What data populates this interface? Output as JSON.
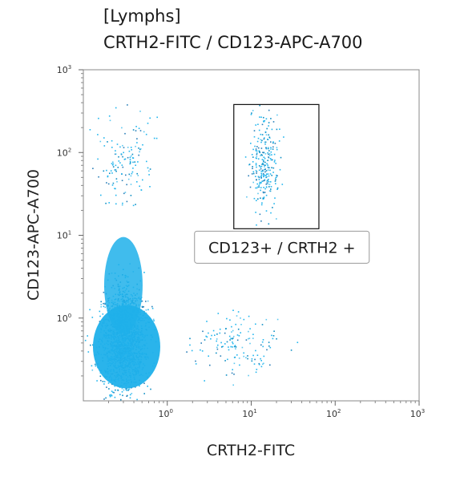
{
  "title": "[Lymphs]",
  "subtitle": "CRTH2-FITC / CD123-APC-A700",
  "chart_data": {
    "type": "scatter",
    "title": "[Lymphs]",
    "subtitle": "CRTH2-FITC / CD123-APC-A700",
    "xlabel": "CRTH2-FITC",
    "ylabel": "CD123-APC-A700",
    "x_scale": "log",
    "y_scale": "log",
    "xlim": [
      0.1,
      1000
    ],
    "ylim": [
      0.1,
      1000
    ],
    "x_ticks": [
      {
        "base": "10",
        "exp": "0",
        "value": 1
      },
      {
        "base": "10",
        "exp": "1",
        "value": 10
      },
      {
        "base": "10",
        "exp": "2",
        "value": 100
      },
      {
        "base": "10",
        "exp": "3",
        "value": 1000
      }
    ],
    "y_ticks": [
      {
        "base": "10",
        "exp": "0",
        "value": 1
      },
      {
        "base": "10",
        "exp": "1",
        "value": 10
      },
      {
        "base": "10",
        "exp": "2",
        "value": 100
      },
      {
        "base": "10",
        "exp": "3",
        "value": 1000
      }
    ],
    "point_color": "#22b6ee",
    "dense_color": "#1fb0ea",
    "gate": {
      "label": "CD123+ / CRTH2 +",
      "x_range": [
        6.2,
        64
      ],
      "y_range": [
        12,
        380
      ]
    },
    "populations": [
      {
        "name": "main cluster",
        "x_center": 0.3,
        "y_center": 0.55,
        "x_spread_log": 0.13,
        "y_spread_log": 0.32,
        "density": "very high"
      },
      {
        "name": "CD123+ CRTH2+ events",
        "x_center": 14,
        "y_center": 75,
        "x_spread_log": 0.09,
        "y_spread_log": 0.28,
        "density": "medium"
      },
      {
        "name": "CRTH2+ CD123- events",
        "x_center": 7,
        "y_center": 0.5,
        "x_spread_log": 0.3,
        "y_spread_log": 0.18,
        "density": "low"
      },
      {
        "name": "upper-left sparse events",
        "x_center": 0.3,
        "y_center": 80,
        "x_spread_log": 0.18,
        "y_spread_log": 0.25,
        "density": "low"
      }
    ]
  }
}
